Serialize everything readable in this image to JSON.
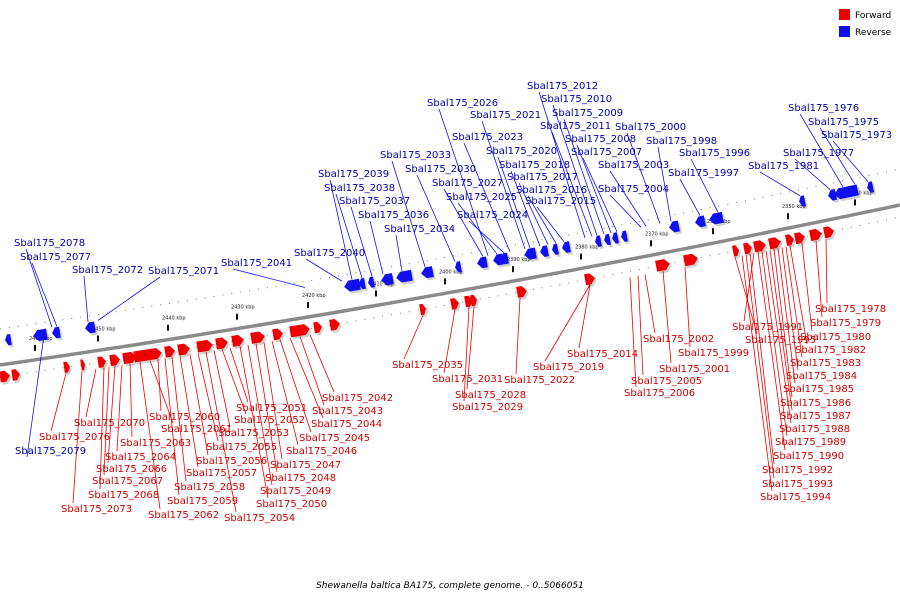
{
  "legend": {
    "forward": {
      "label": "Forward",
      "color": "#ee0000"
    },
    "reverse": {
      "label": "Reverse",
      "color": "#1010ee"
    }
  },
  "caption": "Shewanella baltica BA175, complete genome. - 0..5066051",
  "ticks": [
    "2460 kbp",
    "2450 kbp",
    "2440 kbp",
    "2430 kbp",
    "2420 kbp",
    "2410 kbp",
    "2400 kbp",
    "2390 kbp",
    "2380 kbp",
    "2370 kbp",
    "2360 kbp",
    "2350 kbp",
    "2340 kbp"
  ],
  "genes_reverse": [
    "Sbal175_2079",
    "Sbal175_2078",
    "Sbal175_2077",
    "Sbal175_2072",
    "Sbal175_2071",
    "Sbal175_2041",
    "Sbal175_2040",
    "Sbal175_2039",
    "Sbal175_2038",
    "Sbal175_2037",
    "Sbal175_2036",
    "Sbal175_2034",
    "Sbal175_2033",
    "Sbal175_2030",
    "Sbal175_2027",
    "Sbal175_2026",
    "Sbal175_2025",
    "Sbal175_2024",
    "Sbal175_2023",
    "Sbal175_2021",
    "Sbal175_2020",
    "Sbal175_2018",
    "Sbal175_2017",
    "Sbal175_2016",
    "Sbal175_2015",
    "Sbal175_2012",
    "Sbal175_2011",
    "Sbal175_2010",
    "Sbal175_2009",
    "Sbal175_2008",
    "Sbal175_2007",
    "Sbal175_2004",
    "Sbal175_2003",
    "Sbal175_2000",
    "Sbal175_1998",
    "Sbal175_1997",
    "Sbal175_1996",
    "Sbal175_1981",
    "Sbal175_1977",
    "Sbal175_1976",
    "Sbal175_1975",
    "Sbal175_1973"
  ],
  "genes_forward": [
    "Sbal175_2076",
    "Sbal175_2073",
    "Sbal175_2070",
    "Sbal175_2068",
    "Sbal175_2067",
    "Sbal175_2066",
    "Sbal175_2064",
    "Sbal175_2063",
    "Sbal175_2062",
    "Sbal175_2061",
    "Sbal175_2060",
    "Sbal175_2059",
    "Sbal175_2058",
    "Sbal175_2057",
    "Sbal175_2056",
    "Sbal175_2055",
    "Sbal175_2054",
    "Sbal175_2053",
    "Sbal175_2052",
    "Sbal175_2051",
    "Sbal175_2050",
    "Sbal175_2049",
    "Sbal175_2048",
    "Sbal175_2047",
    "Sbal175_2046",
    "Sbal175_2045",
    "Sbal175_2044",
    "Sbal175_2043",
    "Sbal175_2042",
    "Sbal175_2035",
    "Sbal175_2031",
    "Sbal175_2029",
    "Sbal175_2028",
    "Sbal175_2022",
    "Sbal175_2019",
    "Sbal175_2014",
    "Sbal175_2006",
    "Sbal175_2005",
    "Sbal175_2002",
    "Sbal175_2001",
    "Sbal175_1999",
    "Sbal175_1995",
    "Sbal175_1994",
    "Sbal175_1993",
    "Sbal175_1992",
    "Sbal175_1991",
    "Sbal175_1990",
    "Sbal175_1989",
    "Sbal175_1988",
    "Sbal175_1987",
    "Sbal175_1986",
    "Sbal175_1985",
    "Sbal175_1984",
    "Sbal175_1983",
    "Sbal175_1982",
    "Sbal175_1980",
    "Sbal175_1979",
    "Sbal175_1978"
  ]
}
